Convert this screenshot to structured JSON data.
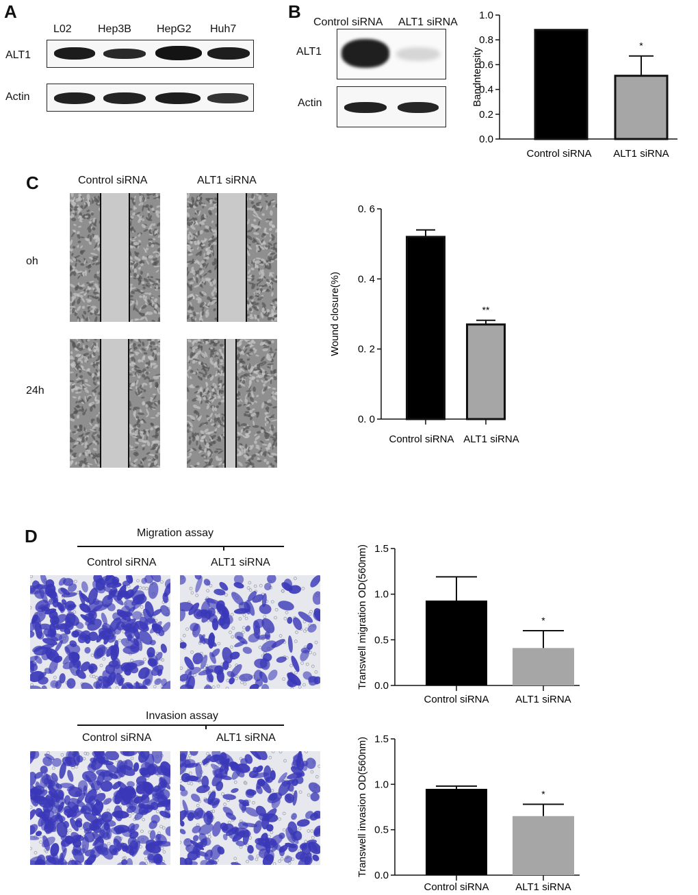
{
  "panelA": {
    "letter": "A",
    "lanes": [
      "L02",
      "Hep3B",
      "HepG2",
      "Huh7"
    ],
    "rows": [
      "ALT1",
      "Actin"
    ]
  },
  "panelB": {
    "letter": "B",
    "lanes": [
      "Control siRNA",
      "ALT1 siRNA"
    ],
    "rows": [
      "ALT1",
      "Actin"
    ]
  },
  "panelC": {
    "letter": "C",
    "columns": [
      "Control siRNA",
      "ALT1 siRNA"
    ],
    "rows": [
      "oh",
      "24h"
    ]
  },
  "panelD": {
    "letter": "D",
    "migration_title": "Migration assay",
    "invasion_title": "Invasion assay",
    "columns": [
      "Control siRNA",
      "ALT1 siRNA"
    ]
  },
  "colors": {
    "control_bar": "#000000",
    "alt1_bar": "#a6a6a6",
    "stain": "#3a38b8"
  },
  "chart_data": [
    {
      "id": "B",
      "type": "bar",
      "categories": [
        "Control siRNA",
        "ALT1 siRNA"
      ],
      "values": [
        0.88,
        0.51
      ],
      "errors": [
        0.0,
        0.16
      ],
      "significance": [
        "",
        "*"
      ],
      "ylabel": "Bandntensity",
      "ylim": [
        0.0,
        1.0
      ],
      "yticks": [
        "0.0",
        "0.2",
        "0.4",
        "0.6",
        "0.8",
        "1.0"
      ]
    },
    {
      "id": "C",
      "type": "bar",
      "categories": [
        "Control siRNA",
        "ALT1 siRNA"
      ],
      "values": [
        0.52,
        0.27
      ],
      "errors": [
        0.02,
        0.012
      ],
      "significance": [
        "",
        "**"
      ],
      "ylabel": "Wound   closure(%)",
      "ylim": [
        0.0,
        0.6
      ],
      "yticks": [
        "0. 0",
        "0. 2",
        "0. 4",
        "0. 6"
      ]
    },
    {
      "id": "D-migration",
      "type": "bar",
      "categories": [
        "Control siRNA",
        "ALT1 siRNA"
      ],
      "values": [
        0.93,
        0.41
      ],
      "errors": [
        0.26,
        0.19
      ],
      "significance": [
        "",
        "*"
      ],
      "ylabel": "Transwell  migration OD(560nm)",
      "ylim": [
        0.0,
        1.5
      ],
      "yticks": [
        "0.0",
        "0.5",
        "1.0",
        "1.5"
      ]
    },
    {
      "id": "D-invasion",
      "type": "bar",
      "categories": [
        "Control siRNA",
        "ALT1 siRNA"
      ],
      "values": [
        0.95,
        0.65
      ],
      "errors": [
        0.03,
        0.13
      ],
      "significance": [
        "",
        "*"
      ],
      "ylabel": "Transwell invasion OD(560nm)",
      "ylim": [
        0.0,
        1.5
      ],
      "yticks": [
        "0.0",
        "0.5",
        "1.0",
        "1.5"
      ]
    }
  ]
}
